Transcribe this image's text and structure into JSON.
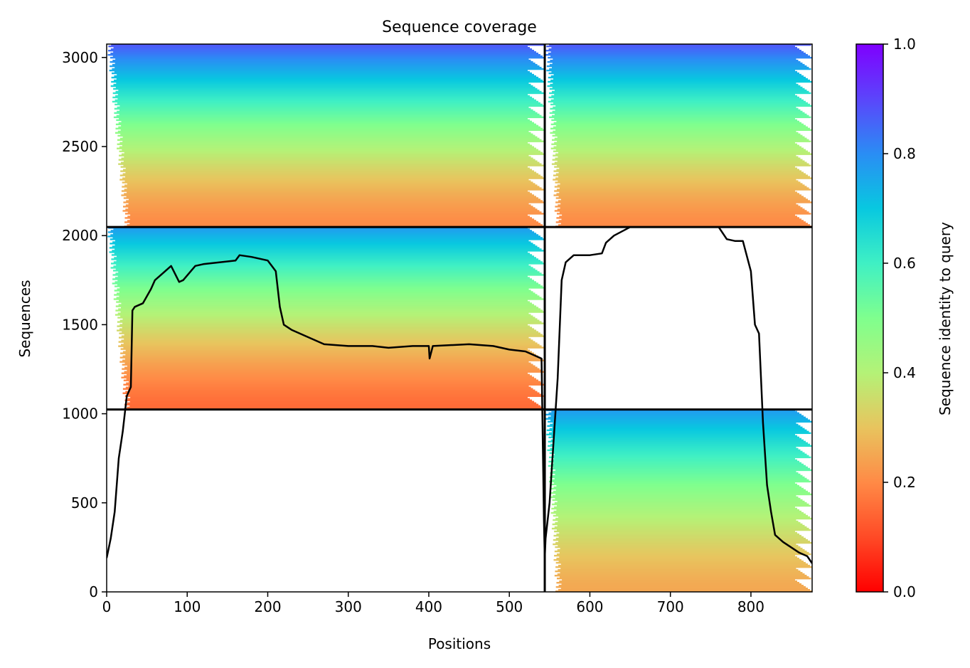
{
  "chart_data": {
    "type": "heatmap",
    "title": "Sequence coverage",
    "xlabel": "Positions",
    "ylabel": "Sequences",
    "xlim": [
      0,
      876
    ],
    "ylim": [
      0,
      3075
    ],
    "xticks": [
      0,
      100,
      200,
      300,
      400,
      500,
      600,
      700,
      800
    ],
    "yticks": [
      0,
      500,
      1000,
      1500,
      2000,
      2500,
      3000
    ],
    "grid": false,
    "colorbar": {
      "label": "Sequence identity to query",
      "range": [
        0,
        1
      ],
      "ticks": [
        0.0,
        0.2,
        0.4,
        0.6,
        0.8,
        1.0
      ],
      "tick_labels": [
        "0.0",
        "0.2",
        "0.4",
        "0.6",
        "0.8",
        "1.0"
      ],
      "colormap": "rainbow_r",
      "colors": [
        "#ff0000",
        "#ff7f3f",
        "#d4ea63",
        "#7fffb0",
        "#2bb3f0",
        "#7f00ff"
      ]
    },
    "chain_boundaries_x": [
      544
    ],
    "block_boundaries_y": [
      1024,
      2048
    ],
    "blocks": [
      {
        "y0": 2048,
        "y1": 3075,
        "x0": 0,
        "x1": 544,
        "identity_bottom": 0.2,
        "identity_top": 0.88
      },
      {
        "y0": 2048,
        "y1": 3075,
        "x0": 544,
        "x1": 876,
        "identity_bottom": 0.2,
        "identity_top": 0.88
      },
      {
        "y0": 1024,
        "y1": 2048,
        "x0": 0,
        "x1": 544,
        "identity_bottom": 0.15,
        "identity_top": 0.78
      },
      {
        "y0": 0,
        "y1": 1024,
        "x0": 544,
        "x1": 876,
        "identity_bottom": 0.25,
        "identity_top": 0.78
      }
    ],
    "coverage_line": {
      "x": [
        0,
        5,
        10,
        15,
        20,
        25,
        30,
        32,
        35,
        45,
        55,
        60,
        70,
        80,
        90,
        95,
        110,
        120,
        140,
        160,
        165,
        180,
        200,
        210,
        215,
        220,
        230,
        250,
        270,
        300,
        330,
        350,
        380,
        400,
        401,
        405,
        450,
        480,
        500,
        520,
        540,
        543,
        544,
        545,
        550,
        555,
        560,
        565,
        570,
        580,
        600,
        615,
        620,
        630,
        650,
        700,
        720,
        760,
        770,
        780,
        790,
        800,
        805,
        810,
        815,
        820,
        825,
        830,
        840,
        860,
        870,
        876
      ],
      "y": [
        190,
        300,
        450,
        750,
        900,
        1100,
        1150,
        1580,
        1600,
        1620,
        1700,
        1750,
        1790,
        1830,
        1740,
        1750,
        1830,
        1840,
        1850,
        1860,
        1890,
        1880,
        1860,
        1800,
        1600,
        1500,
        1470,
        1430,
        1390,
        1380,
        1380,
        1370,
        1380,
        1380,
        1310,
        1380,
        1390,
        1380,
        1360,
        1350,
        1310,
        400,
        190,
        300,
        500,
        850,
        1200,
        1750,
        1850,
        1890,
        1890,
        1900,
        1960,
        2000,
        2048,
        2048,
        2048,
        2048,
        1980,
        1970,
        1970,
        1800,
        1500,
        1450,
        950,
        600,
        450,
        320,
        280,
        220,
        200,
        160
      ]
    }
  }
}
